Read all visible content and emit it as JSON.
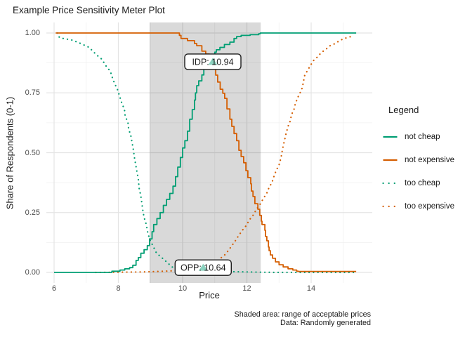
{
  "title": "Example Price Sensitivity Meter Plot",
  "axes": {
    "x_title": "Price",
    "y_title": "Share of Respondents (0-1)",
    "x_ticks": [
      "6",
      "8",
      "10",
      "12",
      "14"
    ],
    "x_tick_values": [
      6,
      8,
      10,
      12,
      14
    ],
    "x_minor_values": [
      7,
      9,
      11,
      13,
      15
    ],
    "y_ticks": [
      "0.00",
      "0.25",
      "0.50",
      "0.75",
      "1.00"
    ],
    "y_tick_values": [
      0,
      0.25,
      0.5,
      0.75,
      1
    ],
    "y_minor_values": [
      0.125,
      0.375,
      0.625,
      0.875
    ]
  },
  "caption": {
    "line1": "Shaded area: range of acceptable prices",
    "line2": "Data: Randomly generated"
  },
  "legend": {
    "title": "Legend",
    "items": [
      {
        "label": "not cheap",
        "color": "#009E73",
        "linetype": "solid"
      },
      {
        "label": "not expensive",
        "color": "#D55E00",
        "linetype": "solid"
      },
      {
        "label": "too cheap",
        "color": "#009E73",
        "linetype": "dotted"
      },
      {
        "label": "too expensive",
        "color": "#D55E00",
        "linetype": "dotted"
      }
    ]
  },
  "colors": {
    "teal": "#009E73",
    "orange": "#D55E00",
    "grid_major": "#E4E4E4",
    "grid_minor": "#F0F0F0",
    "tick_label": "#4D4D4D",
    "text": "#1A1A1A",
    "shade_fill": "#000000",
    "shade_opacity": 0.15,
    "marker_fill": "#009E73",
    "marker_opacity": 0.45,
    "label_box_fill": "#FFFFFF",
    "label_box_border": "#1A1A1A"
  },
  "chart_data": {
    "type": "line",
    "title": "Example Price Sensitivity Meter Plot",
    "xlabel": "Price",
    "ylabel": "Share of Respondents (0-1)",
    "xlim": [
      5.76,
      15.86
    ],
    "ylim": [
      -0.045,
      1.045
    ],
    "grid": true,
    "legend_position": "right",
    "shaded_region": {
      "x_from": 8.97,
      "x_to": 12.43
    },
    "annotations": [
      {
        "id": "idp",
        "label": "IDP: 10.94",
        "x": 10.94,
        "y": 0.88,
        "marker": "triangle"
      },
      {
        "id": "opp",
        "label": "OPP: 10.64",
        "x": 10.64,
        "y": 0.02,
        "marker": "triangle"
      }
    ],
    "series": [
      {
        "name": "not cheap",
        "color": "#009E73",
        "linetype": "solid",
        "points": [
          [
            6.0,
            0
          ],
          [
            7.7,
            0
          ],
          [
            7.8,
            0.005
          ],
          [
            8.05,
            0.01
          ],
          [
            8.2,
            0.015
          ],
          [
            8.35,
            0.02
          ],
          [
            8.45,
            0.03
          ],
          [
            8.55,
            0.05
          ],
          [
            8.62,
            0.062
          ],
          [
            8.7,
            0.08
          ],
          [
            8.8,
            0.095
          ],
          [
            8.9,
            0.112
          ],
          [
            8.97,
            0.14
          ],
          [
            9.05,
            0.17
          ],
          [
            9.1,
            0.2
          ],
          [
            9.2,
            0.225
          ],
          [
            9.3,
            0.25
          ],
          [
            9.4,
            0.28
          ],
          [
            9.5,
            0.305
          ],
          [
            9.6,
            0.33
          ],
          [
            9.7,
            0.36
          ],
          [
            9.78,
            0.4
          ],
          [
            9.85,
            0.44
          ],
          [
            9.93,
            0.48
          ],
          [
            10.0,
            0.52
          ],
          [
            10.07,
            0.55
          ],
          [
            10.15,
            0.59
          ],
          [
            10.22,
            0.64
          ],
          [
            10.3,
            0.68
          ],
          [
            10.37,
            0.72
          ],
          [
            10.4,
            0.75
          ],
          [
            10.44,
            0.78
          ],
          [
            10.5,
            0.8
          ],
          [
            10.6,
            0.825
          ],
          [
            10.66,
            0.85
          ],
          [
            10.72,
            0.868
          ],
          [
            10.81,
            0.878
          ],
          [
            10.94,
            0.895
          ],
          [
            11.0,
            0.92
          ],
          [
            11.05,
            0.93
          ],
          [
            11.16,
            0.94
          ],
          [
            11.3,
            0.952
          ],
          [
            11.47,
            0.962
          ],
          [
            11.6,
            0.977
          ],
          [
            11.68,
            0.985
          ],
          [
            11.82,
            0.99
          ],
          [
            12.1,
            0.993
          ],
          [
            12.37,
            0.997
          ],
          [
            12.42,
            1.0
          ],
          [
            15.4,
            1.0
          ]
        ]
      },
      {
        "name": "not expensive",
        "color": "#D55E00",
        "linetype": "solid",
        "points": [
          [
            6.05,
            1.0
          ],
          [
            9.8,
            1.0
          ],
          [
            9.9,
            0.99
          ],
          [
            9.95,
            0.977
          ],
          [
            10.15,
            0.968
          ],
          [
            10.37,
            0.956
          ],
          [
            10.44,
            0.947
          ],
          [
            10.6,
            0.924
          ],
          [
            10.72,
            0.912
          ],
          [
            10.83,
            0.895
          ],
          [
            10.94,
            0.878
          ],
          [
            11.0,
            0.853
          ],
          [
            11.03,
            0.824
          ],
          [
            11.09,
            0.795
          ],
          [
            11.17,
            0.765
          ],
          [
            11.25,
            0.748
          ],
          [
            11.31,
            0.727
          ],
          [
            11.38,
            0.683
          ],
          [
            11.47,
            0.64
          ],
          [
            11.53,
            0.61
          ],
          [
            11.6,
            0.58
          ],
          [
            11.68,
            0.55
          ],
          [
            11.75,
            0.51
          ],
          [
            11.82,
            0.484
          ],
          [
            11.9,
            0.458
          ],
          [
            11.97,
            0.425
          ],
          [
            12.03,
            0.396
          ],
          [
            12.12,
            0.37
          ],
          [
            12.14,
            0.34
          ],
          [
            12.19,
            0.317
          ],
          [
            12.25,
            0.287
          ],
          [
            12.34,
            0.264
          ],
          [
            12.4,
            0.238
          ],
          [
            12.45,
            0.214
          ],
          [
            12.47,
            0.2
          ],
          [
            12.56,
            0.176
          ],
          [
            12.58,
            0.15
          ],
          [
            12.62,
            0.132
          ],
          [
            12.67,
            0.106
          ],
          [
            12.69,
            0.091
          ],
          [
            12.73,
            0.073
          ],
          [
            12.8,
            0.059
          ],
          [
            12.89,
            0.044
          ],
          [
            13.0,
            0.032
          ],
          [
            13.13,
            0.023
          ],
          [
            13.28,
            0.015
          ],
          [
            13.43,
            0.01
          ],
          [
            13.55,
            0.005
          ],
          [
            13.6,
            0.004
          ],
          [
            15.4,
            0.004
          ]
        ]
      },
      {
        "name": "too cheap",
        "color": "#009E73",
        "linetype": "dotted",
        "points": [
          [
            6.1,
            1.0
          ],
          [
            6.17,
            0.98
          ],
          [
            6.57,
            0.97
          ],
          [
            6.83,
            0.956
          ],
          [
            7.09,
            0.94
          ],
          [
            7.31,
            0.91
          ],
          [
            7.49,
            0.89
          ],
          [
            7.6,
            0.865
          ],
          [
            7.75,
            0.84
          ],
          [
            7.81,
            0.815
          ],
          [
            7.88,
            0.79
          ],
          [
            7.97,
            0.765
          ],
          [
            8.03,
            0.74
          ],
          [
            8.1,
            0.71
          ],
          [
            8.19,
            0.68
          ],
          [
            8.21,
            0.655
          ],
          [
            8.3,
            0.625
          ],
          [
            8.32,
            0.6
          ],
          [
            8.39,
            0.57
          ],
          [
            8.43,
            0.54
          ],
          [
            8.47,
            0.51
          ],
          [
            8.5,
            0.48
          ],
          [
            8.54,
            0.45
          ],
          [
            8.58,
            0.42
          ],
          [
            8.62,
            0.39
          ],
          [
            8.65,
            0.35
          ],
          [
            8.7,
            0.32
          ],
          [
            8.73,
            0.29
          ],
          [
            8.76,
            0.26
          ],
          [
            8.8,
            0.23
          ],
          [
            8.87,
            0.2
          ],
          [
            8.91,
            0.17
          ],
          [
            8.97,
            0.14
          ],
          [
            9.08,
            0.11
          ],
          [
            9.19,
            0.08
          ],
          [
            9.35,
            0.062
          ],
          [
            9.5,
            0.044
          ],
          [
            9.67,
            0.023
          ],
          [
            9.85,
            0.015
          ],
          [
            10.1,
            0.01
          ],
          [
            10.64,
            0.006
          ],
          [
            11.2,
            0.004
          ],
          [
            12.0,
            0.002
          ],
          [
            12.8,
            0.0
          ],
          [
            15.4,
            0.0
          ]
        ]
      },
      {
        "name": "too expensive",
        "color": "#D55E00",
        "linetype": "dotted",
        "points": [
          [
            7.3,
            0.0
          ],
          [
            8.8,
            0.002
          ],
          [
            9.6,
            0.006
          ],
          [
            10.2,
            0.012
          ],
          [
            10.64,
            0.02
          ],
          [
            10.9,
            0.035
          ],
          [
            11.1,
            0.05
          ],
          [
            11.31,
            0.073
          ],
          [
            11.42,
            0.091
          ],
          [
            11.53,
            0.111
          ],
          [
            11.64,
            0.132
          ],
          [
            11.75,
            0.155
          ],
          [
            11.86,
            0.176
          ],
          [
            11.97,
            0.194
          ],
          [
            12.08,
            0.22
          ],
          [
            12.19,
            0.238
          ],
          [
            12.3,
            0.264
          ],
          [
            12.4,
            0.282
          ],
          [
            12.51,
            0.308
          ],
          [
            12.62,
            0.331
          ],
          [
            12.69,
            0.355
          ],
          [
            12.78,
            0.375
          ],
          [
            12.84,
            0.4
          ],
          [
            12.91,
            0.425
          ],
          [
            13.0,
            0.449
          ],
          [
            13.06,
            0.478
          ],
          [
            13.1,
            0.507
          ],
          [
            13.13,
            0.528
          ],
          [
            13.22,
            0.58
          ],
          [
            13.28,
            0.61
          ],
          [
            13.35,
            0.633
          ],
          [
            13.39,
            0.66
          ],
          [
            13.46,
            0.677
          ],
          [
            13.5,
            0.7
          ],
          [
            13.57,
            0.727
          ],
          [
            13.65,
            0.748
          ],
          [
            13.72,
            0.77
          ],
          [
            13.76,
            0.795
          ],
          [
            13.79,
            0.82
          ],
          [
            13.87,
            0.84
          ],
          [
            13.98,
            0.865
          ],
          [
            14.09,
            0.888
          ],
          [
            14.2,
            0.9
          ],
          [
            14.31,
            0.918
          ],
          [
            14.44,
            0.93
          ],
          [
            14.59,
            0.947
          ],
          [
            14.75,
            0.956
          ],
          [
            14.88,
            0.968
          ],
          [
            15.03,
            0.977
          ],
          [
            15.18,
            0.983
          ],
          [
            15.31,
            0.988
          ]
        ]
      }
    ]
  }
}
